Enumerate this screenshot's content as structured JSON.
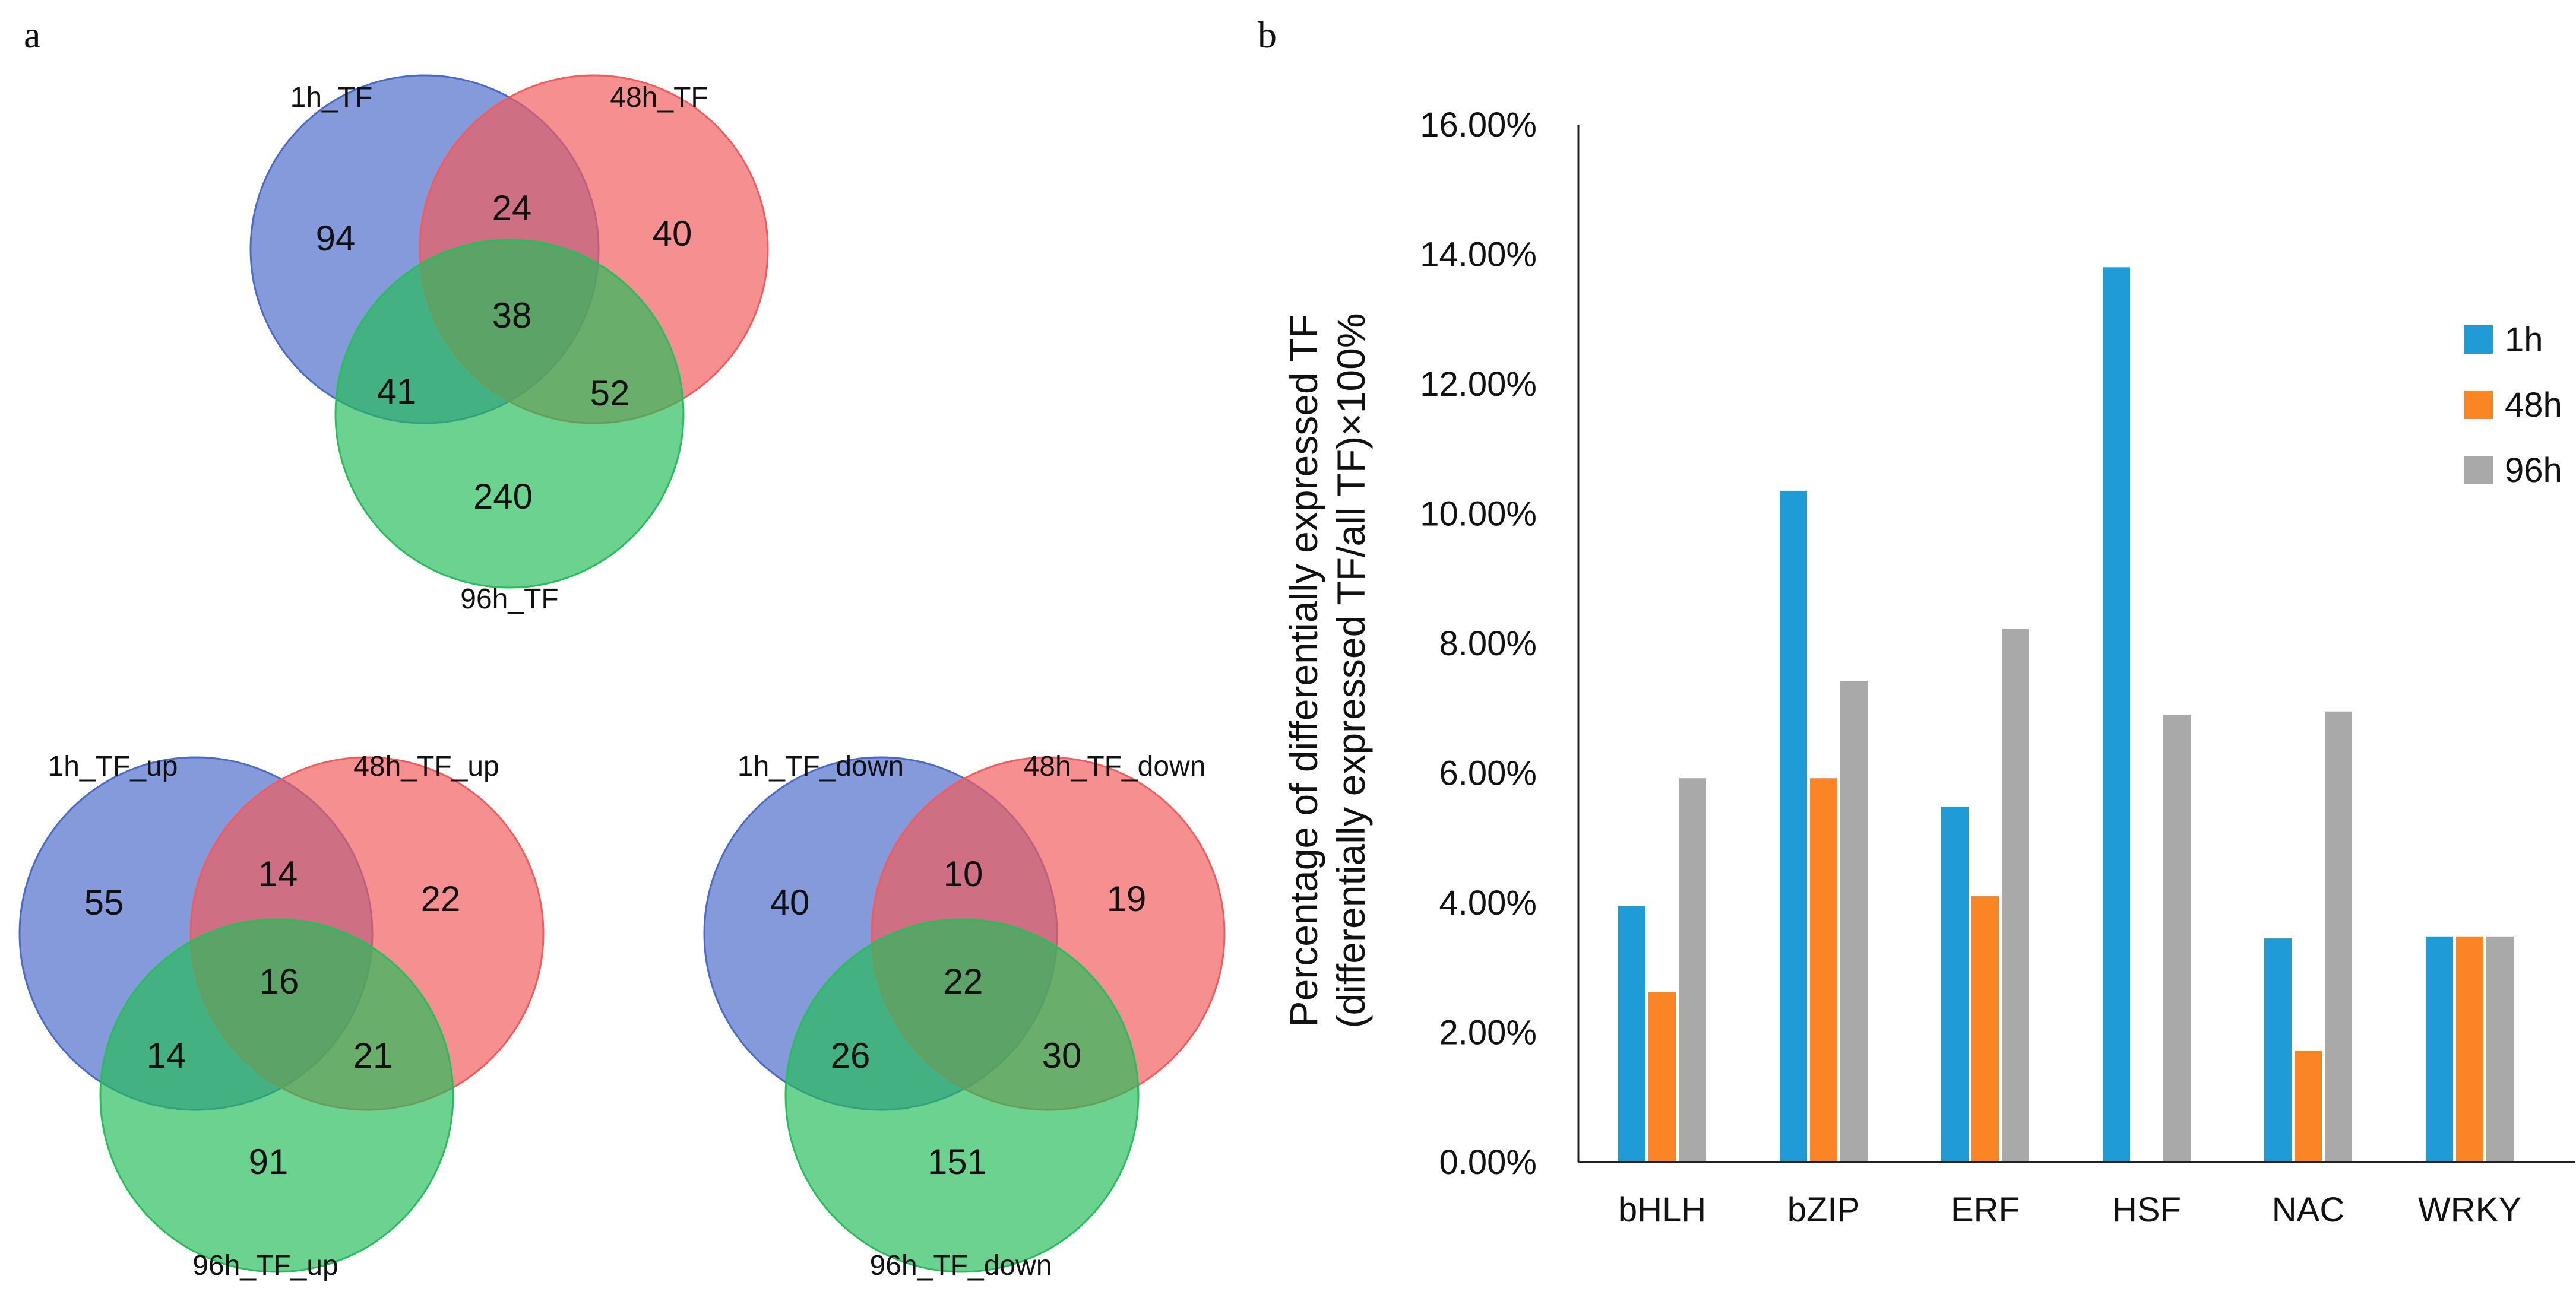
{
  "panel_labels": {
    "a": "a",
    "b": "b"
  },
  "colors": {
    "venn_blue": "#4a6ac8",
    "venn_red": "#f25b5b",
    "venn_green": "#27bd5a",
    "bar_1h": "#1f9bd8",
    "bar_48h": "#fb8424",
    "bar_96h": "#a9a9a9",
    "axis": "#222222"
  },
  "venns": [
    {
      "id": "all",
      "labels": {
        "a": "1h_TF",
        "b": "48h_TF",
        "c": "96h_TF"
      },
      "regions": {
        "a_only": "94",
        "b_only": "40",
        "c_only": "240",
        "ab": "24",
        "ac": "41",
        "bc": "52",
        "abc": "38"
      }
    },
    {
      "id": "up",
      "labels": {
        "a": "1h_TF_up",
        "b": "48h_TF_up",
        "c": "96h_TF_up"
      },
      "regions": {
        "a_only": "55",
        "b_only": "22",
        "c_only": "91",
        "ab": "14",
        "ac": "14",
        "bc": "21",
        "abc": "16"
      }
    },
    {
      "id": "down",
      "labels": {
        "a": "1h_TF_down",
        "b": "48h_TF_down",
        "c": "96h_TF_down"
      },
      "regions": {
        "a_only": "40",
        "b_only": "19",
        "c_only": "151",
        "ab": "10",
        "ac": "26",
        "bc": "30",
        "abc": "22"
      }
    }
  ],
  "chart_data": {
    "type": "bar",
    "title": "",
    "xlabel": "",
    "ylabel_line1": "Percentage of differentially expressed TF",
    "ylabel_line2": "(differentially expressed TF/all TF)×100%",
    "categories": [
      "bHLH",
      "bZIP",
      "ERF",
      "HSF",
      "NAC",
      "WRKY"
    ],
    "series": [
      {
        "name": "1h",
        "color": "#1f9bd8",
        "values": [
          3.95,
          10.35,
          5.48,
          13.8,
          3.45,
          3.48
        ]
      },
      {
        "name": "48h",
        "color": "#fb8424",
        "values": [
          2.62,
          5.92,
          4.1,
          0,
          1.72,
          3.48
        ]
      },
      {
        "name": "96h",
        "color": "#a9a9a9",
        "values": [
          5.92,
          7.42,
          8.22,
          6.9,
          6.95,
          3.48
        ]
      }
    ],
    "ylim": [
      0,
      16
    ],
    "yticks": [
      "0.00%",
      "2.00%",
      "4.00%",
      "6.00%",
      "8.00%",
      "10.00%",
      "12.00%",
      "14.00%",
      "16.00%"
    ],
    "grid": false,
    "legend_position": "right"
  }
}
